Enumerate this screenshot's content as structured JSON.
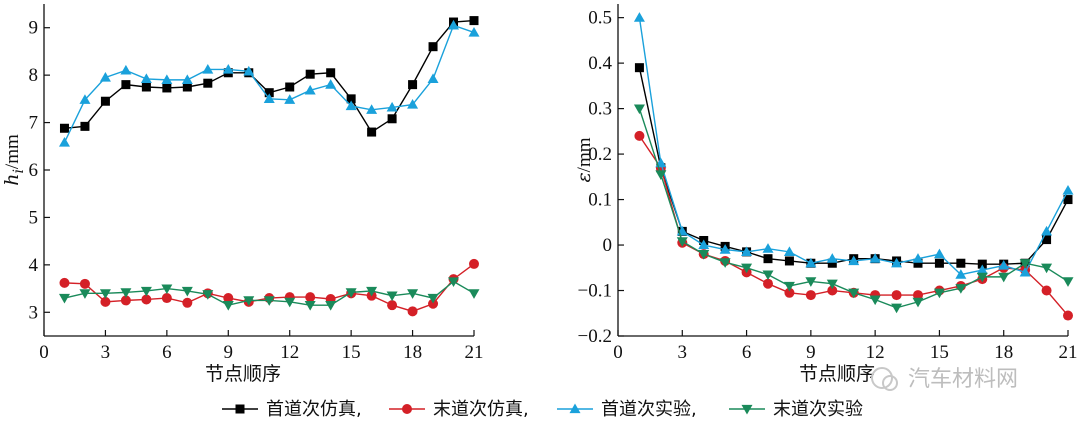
{
  "watermark": "汽车材料网",
  "legend": [
    {
      "name": "首道次仿真,",
      "color": "#000000",
      "marker": "square"
    },
    {
      "name": "末道次仿真,",
      "color": "#d42027",
      "marker": "circle"
    },
    {
      "name": "首道次实验,",
      "color": "#1aa1db",
      "marker": "triangle-up"
    },
    {
      "name": "末道次实验",
      "color": "#1a8a5a",
      "marker": "triangle-down"
    }
  ],
  "chart_data": [
    {
      "type": "line",
      "title": "",
      "xlabel": "节点顺序",
      "ylabel_main": "h",
      "ylabel_sub": "i",
      "ylabel_unit": "/mm",
      "xlim": [
        0,
        21
      ],
      "ylim": [
        2.5,
        9.5
      ],
      "xticks": [
        0,
        3,
        6,
        9,
        12,
        15,
        18,
        21
      ],
      "yticks": [
        3,
        4,
        5,
        6,
        7,
        8,
        9
      ],
      "x": [
        1,
        2,
        3,
        4,
        5,
        6,
        7,
        8,
        9,
        10,
        11,
        12,
        13,
        14,
        15,
        16,
        17,
        18,
        19,
        20,
        21
      ],
      "series": [
        {
          "name": "首道次仿真",
          "color": "#000000",
          "marker": "square",
          "values": [
            6.88,
            6.92,
            7.45,
            7.8,
            7.75,
            7.73,
            7.75,
            7.83,
            8.05,
            8.05,
            7.63,
            7.75,
            8.02,
            8.05,
            7.5,
            6.8,
            7.08,
            7.8,
            8.6,
            9.12,
            9.15
          ]
        },
        {
          "name": "末道次仿真",
          "color": "#d42027",
          "marker": "circle",
          "values": [
            3.62,
            3.6,
            3.22,
            3.25,
            3.27,
            3.3,
            3.2,
            3.4,
            3.3,
            3.22,
            3.3,
            3.32,
            3.32,
            3.28,
            3.4,
            3.35,
            3.15,
            3.02,
            3.18,
            3.7,
            4.02
          ]
        },
        {
          "name": "首道次实验",
          "color": "#1aa1db",
          "marker": "triangle-up",
          "values": [
            6.58,
            7.48,
            7.95,
            8.1,
            7.92,
            7.9,
            7.9,
            8.12,
            8.12,
            8.08,
            7.5,
            7.48,
            7.68,
            7.8,
            7.35,
            7.27,
            7.32,
            7.38,
            7.92,
            9.05,
            8.9
          ]
        },
        {
          "name": "末道次实验",
          "color": "#1a8a5a",
          "marker": "triangle-down",
          "values": [
            3.3,
            3.4,
            3.4,
            3.42,
            3.45,
            3.5,
            3.45,
            3.38,
            3.15,
            3.25,
            3.25,
            3.22,
            3.15,
            3.15,
            3.42,
            3.45,
            3.35,
            3.4,
            3.3,
            3.65,
            3.4
          ]
        }
      ]
    },
    {
      "type": "line",
      "title": "",
      "xlabel": "节点顺序",
      "ylabel_main": "ε",
      "ylabel_sub": "",
      "ylabel_unit": "/mm",
      "xlim": [
        0,
        21
      ],
      "ylim": [
        -0.2,
        0.53
      ],
      "xticks": [
        0,
        3,
        6,
        9,
        12,
        15,
        18,
        21
      ],
      "yticks": [
        -0.2,
        -0.1,
        0,
        0.1,
        0.2,
        0.3,
        0.4,
        0.5
      ],
      "ytick_labels": [
        "−0.2",
        "−0.1",
        "0",
        "0.1",
        "0.2",
        "0.3",
        "0.4",
        "0.5"
      ],
      "x": [
        1,
        2,
        3,
        4,
        5,
        6,
        7,
        8,
        9,
        10,
        11,
        12,
        13,
        14,
        15,
        16,
        17,
        18,
        19,
        20,
        21
      ],
      "series": [
        {
          "name": "首道次仿真",
          "color": "#000000",
          "marker": "square",
          "values": [
            0.39,
            0.17,
            0.03,
            0.01,
            -0.003,
            -0.015,
            -0.03,
            -0.035,
            -0.04,
            -0.04,
            -0.03,
            -0.03,
            -0.035,
            -0.04,
            -0.04,
            -0.04,
            -0.042,
            -0.042,
            -0.04,
            0.012,
            0.1
          ]
        },
        {
          "name": "末道次仿真",
          "color": "#d42027",
          "marker": "circle",
          "values": [
            0.24,
            0.17,
            0.005,
            -0.02,
            -0.035,
            -0.06,
            -0.085,
            -0.105,
            -0.11,
            -0.1,
            -0.105,
            -0.11,
            -0.11,
            -0.11,
            -0.1,
            -0.09,
            -0.075,
            -0.05,
            -0.055,
            -0.1,
            -0.155
          ]
        },
        {
          "name": "首道次实验",
          "color": "#1aa1db",
          "marker": "triangle-up",
          "values": [
            0.5,
            0.18,
            0.03,
            0.0,
            -0.01,
            -0.015,
            -0.008,
            -0.015,
            -0.04,
            -0.03,
            -0.035,
            -0.03,
            -0.04,
            -0.03,
            -0.02,
            -0.065,
            -0.055,
            -0.045,
            -0.06,
            0.03,
            0.12
          ]
        },
        {
          "name": "末道次实验",
          "color": "#1a8a5a",
          "marker": "triangle-down",
          "values": [
            0.3,
            0.155,
            0.008,
            -0.02,
            -0.038,
            -0.05,
            -0.065,
            -0.09,
            -0.08,
            -0.085,
            -0.105,
            -0.12,
            -0.138,
            -0.125,
            -0.105,
            -0.095,
            -0.07,
            -0.07,
            -0.04,
            -0.05,
            -0.08
          ]
        }
      ]
    }
  ]
}
